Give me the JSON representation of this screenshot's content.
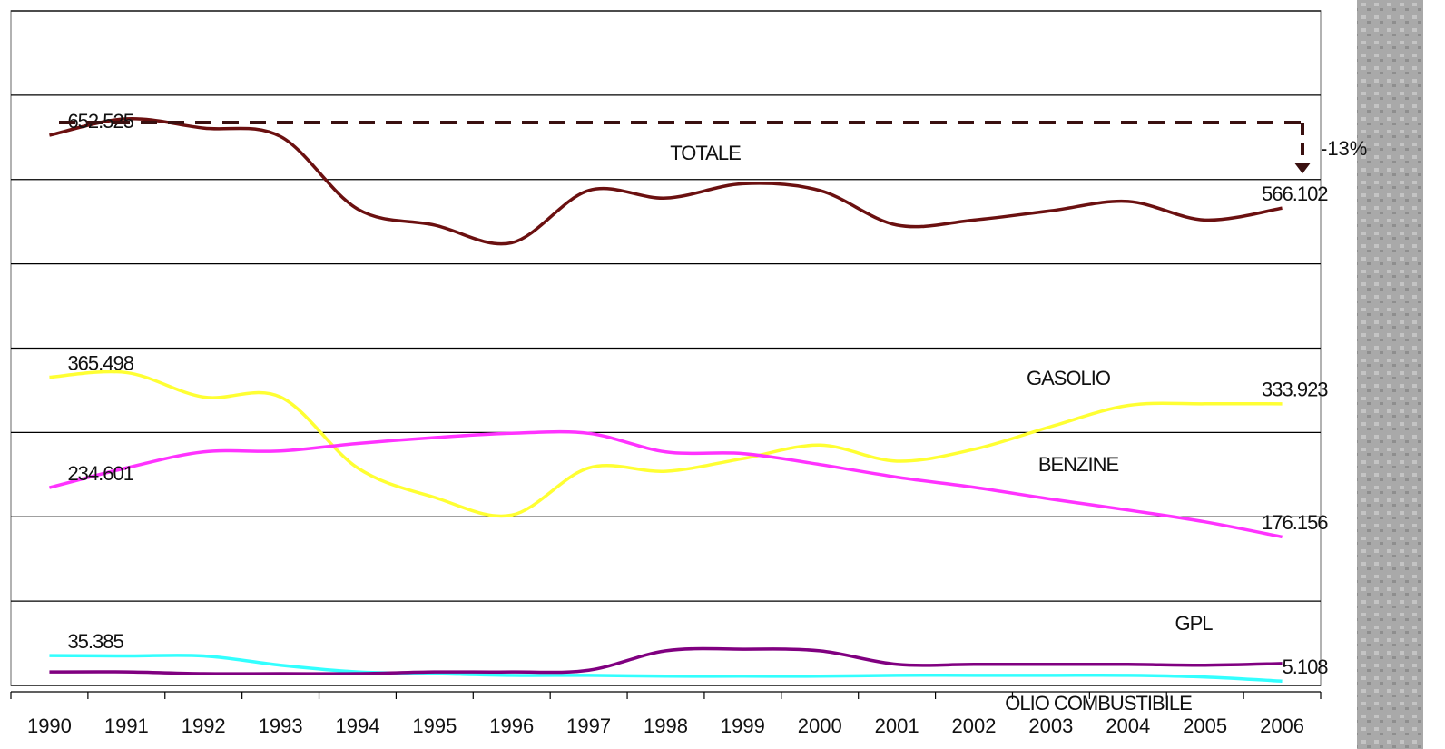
{
  "chart_data": {
    "type": "line",
    "categories": [
      "1990",
      "1991",
      "1992",
      "1993",
      "1994",
      "1995",
      "1996",
      "1997",
      "1998",
      "1999",
      "2000",
      "2001",
      "2002",
      "2003",
      "2004",
      "2005",
      "2006"
    ],
    "ylim": [
      0,
      800
    ],
    "yticks": [
      0,
      100,
      200,
      300,
      400,
      500,
      600,
      700,
      800
    ],
    "grid": true,
    "series": [
      {
        "name": "TOTALE",
        "color": "#6b1010",
        "values": [
          652.525,
          672,
          661,
          651,
          565,
          546,
          525,
          587,
          578,
          595,
          587,
          546,
          552,
          563,
          574,
          552,
          566.102
        ],
        "value_labels": [
          "652.525",
          null,
          null,
          null,
          null,
          null,
          null,
          null,
          null,
          null,
          null,
          null,
          null,
          null,
          null,
          null,
          "566.102"
        ]
      },
      {
        "name": "GASOLIO",
        "color": "#ffff33",
        "values": [
          365.498,
          371,
          342,
          342,
          258,
          223,
          202,
          258,
          254,
          269,
          285,
          266,
          280,
          307,
          332,
          334,
          333.923
        ],
        "value_labels": [
          "365.498",
          null,
          null,
          null,
          null,
          null,
          null,
          null,
          null,
          null,
          null,
          null,
          null,
          null,
          null,
          null,
          "333.923"
        ]
      },
      {
        "name": "BENZINE",
        "color": "#ff33ff",
        "values": [
          234.601,
          258,
          277,
          278,
          287,
          294,
          299,
          299,
          277,
          275,
          262,
          247,
          235,
          221,
          208,
          194,
          176.156
        ],
        "value_labels": [
          "234.601",
          null,
          null,
          null,
          null,
          null,
          null,
          null,
          null,
          null,
          null,
          null,
          null,
          null,
          null,
          null,
          "176.156"
        ]
      },
      {
        "name": "GPL",
        "color": "#33ffff",
        "values": [
          35.385,
          35,
          35,
          24,
          16,
          14,
          12,
          12,
          11,
          11,
          11,
          12,
          12,
          12,
          12,
          10,
          5.108
        ],
        "value_labels": [
          "35.385",
          null,
          null,
          null,
          null,
          null,
          null,
          null,
          null,
          null,
          null,
          null,
          null,
          null,
          null,
          null,
          "5.108"
        ]
      },
      {
        "name": "OLIO COMBUSTIBILE",
        "color": "#800080",
        "values": [
          16,
          16,
          14,
          14,
          14,
          16,
          16,
          18,
          41,
          43,
          41,
          25,
          25,
          25,
          25,
          24,
          26
        ]
      }
    ],
    "annotation": "-13%"
  }
}
